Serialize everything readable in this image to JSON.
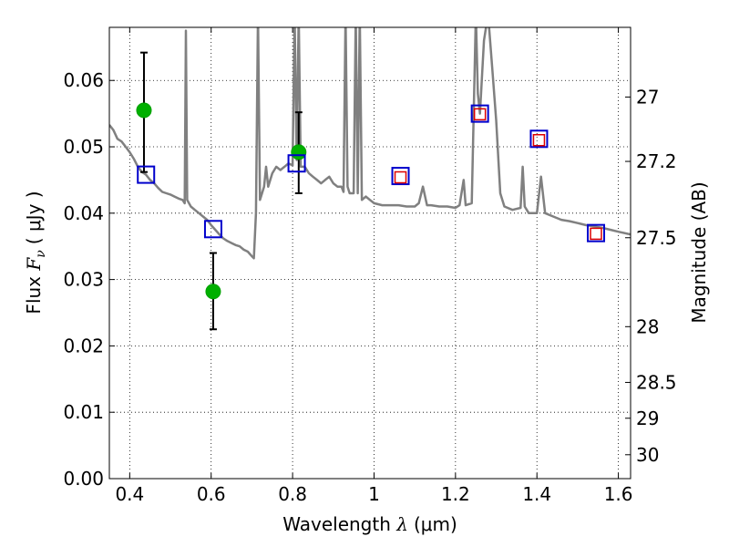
{
  "chart_data": {
    "type": "scatter",
    "xlabel": {
      "prefix": "Wavelength  ",
      "symbol": "λ",
      "unit": "(μm)"
    },
    "ylabel": {
      "prefix": "Flux  ",
      "symbol": "F",
      "subscript": "ν",
      "unit": "(  μJy )"
    },
    "y2label": "Magnitude (AB)",
    "xlim": [
      0.35,
      1.63
    ],
    "ylim": [
      0.0,
      0.068
    ],
    "grid": true,
    "x_ticks": [
      {
        "value": 0.4,
        "label": "0.4"
      },
      {
        "value": 0.6,
        "label": "0.6"
      },
      {
        "value": 0.8,
        "label": "0.8"
      },
      {
        "value": 1.0,
        "label": "1"
      },
      {
        "value": 1.2,
        "label": "1.2"
      },
      {
        "value": 1.4,
        "label": "1.4"
      },
      {
        "value": 1.6,
        "label": "1.6"
      }
    ],
    "y_ticks": [
      {
        "value": 0.0,
        "label": "0.00"
      },
      {
        "value": 0.01,
        "label": "0.01"
      },
      {
        "value": 0.02,
        "label": "0.02"
      },
      {
        "value": 0.03,
        "label": "0.03"
      },
      {
        "value": 0.04,
        "label": "0.04"
      },
      {
        "value": 0.05,
        "label": "0.05"
      },
      {
        "value": 0.06,
        "label": "0.06"
      }
    ],
    "y2_ticks": [
      {
        "flux": 0.0575,
        "label": "27"
      },
      {
        "flux": 0.0478,
        "label": "27.2"
      },
      {
        "flux": 0.0363,
        "label": "27.5"
      },
      {
        "flux": 0.0229,
        "label": "28"
      },
      {
        "flux": 0.0145,
        "label": "28.5"
      },
      {
        "flux": 0.0091,
        "label": "29"
      },
      {
        "flux": 0.0036,
        "label": "30"
      }
    ],
    "series": [
      {
        "kind": "line",
        "color": "#808080",
        "points": [
          [
            0.35,
            0.0533
          ],
          [
            0.36,
            0.0525
          ],
          [
            0.37,
            0.0512
          ],
          [
            0.38,
            0.0508
          ],
          [
            0.39,
            0.05
          ],
          [
            0.4,
            0.0492
          ],
          [
            0.41,
            0.0482
          ],
          [
            0.42,
            0.047
          ],
          [
            0.43,
            0.0462
          ],
          [
            0.44,
            0.0458
          ],
          [
            0.45,
            0.045
          ],
          [
            0.46,
            0.0445
          ],
          [
            0.47,
            0.0438
          ],
          [
            0.48,
            0.0432
          ],
          [
            0.49,
            0.043
          ],
          [
            0.5,
            0.0428
          ],
          [
            0.51,
            0.0425
          ],
          [
            0.52,
            0.0422
          ],
          [
            0.53,
            0.042
          ],
          [
            0.535,
            0.0415
          ],
          [
            0.538,
            0.0675
          ],
          [
            0.541,
            0.042
          ],
          [
            0.55,
            0.041
          ],
          [
            0.56,
            0.0405
          ],
          [
            0.57,
            0.04
          ],
          [
            0.58,
            0.0395
          ],
          [
            0.59,
            0.039
          ],
          [
            0.6,
            0.0382
          ],
          [
            0.61,
            0.0375
          ],
          [
            0.62,
            0.0368
          ],
          [
            0.63,
            0.0362
          ],
          [
            0.64,
            0.0358
          ],
          [
            0.65,
            0.0355
          ],
          [
            0.66,
            0.0352
          ],
          [
            0.67,
            0.035
          ],
          [
            0.68,
            0.0345
          ],
          [
            0.69,
            0.0342
          ],
          [
            0.7,
            0.0335
          ],
          [
            0.705,
            0.0332
          ],
          [
            0.71,
            0.04
          ],
          [
            0.715,
            0.07
          ],
          [
            0.72,
            0.042
          ],
          [
            0.73,
            0.044
          ],
          [
            0.735,
            0.047
          ],
          [
            0.74,
            0.044
          ],
          [
            0.75,
            0.046
          ],
          [
            0.76,
            0.047
          ],
          [
            0.77,
            0.0465
          ],
          [
            0.78,
            0.047
          ],
          [
            0.79,
            0.0475
          ],
          [
            0.8,
            0.0472
          ],
          [
            0.805,
            0.07
          ],
          [
            0.81,
            0.048
          ],
          [
            0.815,
            0.07
          ],
          [
            0.82,
            0.047
          ],
          [
            0.83,
            0.047
          ],
          [
            0.84,
            0.046
          ],
          [
            0.85,
            0.0455
          ],
          [
            0.86,
            0.045
          ],
          [
            0.87,
            0.0445
          ],
          [
            0.88,
            0.045
          ],
          [
            0.89,
            0.0455
          ],
          [
            0.9,
            0.0445
          ],
          [
            0.91,
            0.044
          ],
          [
            0.92,
            0.044
          ],
          [
            0.925,
            0.0432
          ],
          [
            0.93,
            0.07
          ],
          [
            0.935,
            0.044
          ],
          [
            0.94,
            0.043
          ],
          [
            0.95,
            0.043
          ],
          [
            0.955,
            0.07
          ],
          [
            0.96,
            0.043
          ],
          [
            0.965,
            0.07
          ],
          [
            0.97,
            0.042
          ],
          [
            0.98,
            0.0425
          ],
          [
            0.99,
            0.042
          ],
          [
            1.0,
            0.0415
          ],
          [
            1.02,
            0.0412
          ],
          [
            1.04,
            0.0412
          ],
          [
            1.06,
            0.0412
          ],
          [
            1.08,
            0.041
          ],
          [
            1.1,
            0.041
          ],
          [
            1.11,
            0.0415
          ],
          [
            1.12,
            0.044
          ],
          [
            1.13,
            0.0412
          ],
          [
            1.14,
            0.0412
          ],
          [
            1.16,
            0.041
          ],
          [
            1.18,
            0.041
          ],
          [
            1.2,
            0.0408
          ],
          [
            1.21,
            0.0412
          ],
          [
            1.22,
            0.045
          ],
          [
            1.225,
            0.0412
          ],
          [
            1.24,
            0.0415
          ],
          [
            1.25,
            0.07
          ],
          [
            1.255,
            0.058
          ],
          [
            1.26,
            0.055
          ],
          [
            1.27,
            0.066
          ],
          [
            1.28,
            0.07
          ],
          [
            1.29,
            0.062
          ],
          [
            1.3,
            0.054
          ],
          [
            1.31,
            0.043
          ],
          [
            1.32,
            0.041
          ],
          [
            1.34,
            0.0405
          ],
          [
            1.36,
            0.0408
          ],
          [
            1.365,
            0.047
          ],
          [
            1.37,
            0.041
          ],
          [
            1.38,
            0.04
          ],
          [
            1.4,
            0.04
          ],
          [
            1.41,
            0.0455
          ],
          [
            1.42,
            0.04
          ],
          [
            1.44,
            0.0395
          ],
          [
            1.46,
            0.039
          ],
          [
            1.48,
            0.0388
          ],
          [
            1.5,
            0.0385
          ],
          [
            1.52,
            0.0382
          ],
          [
            1.54,
            0.038
          ],
          [
            1.56,
            0.0378
          ],
          [
            1.58,
            0.0375
          ],
          [
            1.6,
            0.0372
          ],
          [
            1.63,
            0.0368
          ]
        ]
      },
      {
        "kind": "errorbar",
        "color": "#00b000",
        "marker": "circle",
        "points": [
          {
            "x": 0.435,
            "y": 0.0555,
            "yerr_low": 0.0462,
            "yerr_high": 0.0642
          },
          {
            "x": 0.605,
            "y": 0.0282,
            "yerr_low": 0.0225,
            "yerr_high": 0.034
          },
          {
            "x": 0.815,
            "y": 0.0492,
            "yerr_low": 0.043,
            "yerr_high": 0.0552
          }
        ]
      },
      {
        "kind": "scatter",
        "color": "#0000cc",
        "marker": "square-open-large",
        "points": [
          [
            0.44,
            0.0458
          ],
          [
            0.605,
            0.0376
          ],
          [
            0.81,
            0.0475
          ],
          [
            1.065,
            0.0456
          ],
          [
            1.26,
            0.055
          ],
          [
            1.405,
            0.0512
          ],
          [
            1.545,
            0.037
          ]
        ]
      },
      {
        "kind": "scatter",
        "color": "#dd0000",
        "marker": "square-open-small",
        "points": [
          [
            1.065,
            0.0454
          ],
          [
            1.26,
            0.0549
          ],
          [
            1.405,
            0.051
          ],
          [
            1.545,
            0.0369
          ]
        ]
      }
    ]
  }
}
